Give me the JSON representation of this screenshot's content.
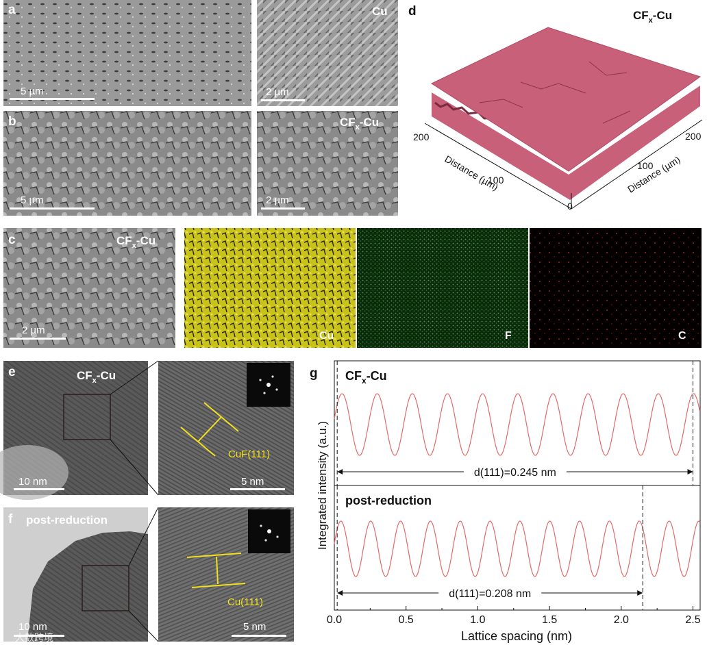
{
  "panels": {
    "a": {
      "letter": "a",
      "label": "Cu",
      "scale_left": "5 µm",
      "scale_right": "2 µm"
    },
    "b": {
      "letter": "b",
      "label_main": "CF",
      "label_sub": "x",
      "label_tail": "-Cu",
      "scale_left": "5 µm",
      "scale_right": "2 µm"
    },
    "c": {
      "letter": "c",
      "label_main": "CF",
      "label_sub": "x",
      "label_tail": "-Cu",
      "scale": "2 µm",
      "maps": [
        "Cu",
        "F",
        "C"
      ]
    },
    "d": {
      "letter": "d",
      "label_main": "CF",
      "label_sub": "x",
      "label_tail": "-Cu",
      "left_axis_title": "Distance (µm)",
      "right_axis_title": "Distance (µm)",
      "left_ticks": [
        "200",
        "100"
      ],
      "right_ticks": [
        "200",
        "100"
      ],
      "origin_tick": "0"
    },
    "e": {
      "letter": "e",
      "label_main": "CF",
      "label_sub": "x",
      "label_tail": "-Cu",
      "scale_left": "10 nm",
      "scale_right": "5 nm",
      "lattice_label": "CuF(111)"
    },
    "f": {
      "letter": "f",
      "label": "post-reduction",
      "scale_left": "10 nm",
      "scale_right": "5 nm",
      "lattice_label": "Cu(111)"
    },
    "g": {
      "letter": "g"
    }
  },
  "watermark": "大数跨境",
  "chart_data": {
    "type": "line",
    "xlabel": "Lattice spacing (nm)",
    "ylabel": "Integrated intensity (a.u.)",
    "xlim": [
      0.0,
      2.55
    ],
    "x_ticks": [
      "0.0",
      "0.5",
      "1.0",
      "1.5",
      "2.0",
      "2.5"
    ],
    "grid": false,
    "color": "#e06a6a",
    "subplots": [
      {
        "name": "CFx-Cu",
        "title_main": "CF",
        "title_sub": "x",
        "title_tail": "-Cu",
        "period_nm": 0.245,
        "x_start": 0.0,
        "x_end": 2.55,
        "annotation": "d(111)=0.245 nm",
        "marker_lines_x": [
          0.02,
          2.5
        ]
      },
      {
        "name": "post-reduction",
        "title": "post-reduction",
        "period_nm": 0.208,
        "x_start": 0.0,
        "x_end": 2.55,
        "annotation": "d(111)=0.208 nm",
        "marker_lines_x": [
          0.02,
          2.15
        ]
      }
    ]
  }
}
